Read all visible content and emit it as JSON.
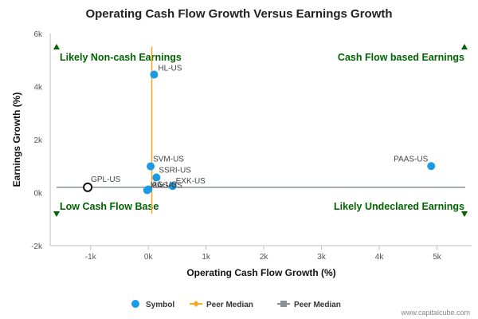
{
  "chart_data": {
    "type": "scatter",
    "title": "Operating Cash Flow Growth Versus Earnings Growth",
    "xlabel": "Operating Cash Flow Growth (%)",
    "ylabel": "Earnings Growth (%)",
    "xlim": [
      -1700,
      5600
    ],
    "ylim": [
      -2000,
      6000
    ],
    "x_ticks": [
      {
        "value": -1000,
        "label": "-1k"
      },
      {
        "value": 0,
        "label": "0k"
      },
      {
        "value": 1000,
        "label": "1k"
      },
      {
        "value": 2000,
        "label": "2k"
      },
      {
        "value": 3000,
        "label": "3k"
      },
      {
        "value": 4000,
        "label": "4k"
      },
      {
        "value": 5000,
        "label": "5k"
      }
    ],
    "y_ticks": [
      {
        "value": -2000,
        "label": "-2k"
      },
      {
        "value": 0,
        "label": "0k"
      },
      {
        "value": 2000,
        "label": "2k"
      },
      {
        "value": 4000,
        "label": "4k"
      },
      {
        "value": 6000,
        "label": "6k"
      }
    ],
    "grid": false,
    "series": [
      {
        "name": "Symbol",
        "color": "#1a9be8",
        "points": [
          {
            "label": "HL-US",
            "x": 100,
            "y": 4450
          },
          {
            "label": "PAAS-US",
            "x": 4900,
            "y": 1000
          },
          {
            "label": "SVM-US",
            "x": 40,
            "y": 990
          },
          {
            "label": "SSRI-US",
            "x": 140,
            "y": 570
          },
          {
            "label": "EXK-US",
            "x": 420,
            "y": 250
          },
          {
            "label": "AG-US",
            "x": 0,
            "y": 120
          },
          {
            "label": "MAG-US",
            "x": -20,
            "y": 90
          }
        ]
      }
    ],
    "highlight": {
      "label": "GPL-US",
      "x": -1050,
      "y": 200
    },
    "peer_median_x": {
      "name": "Peer Median",
      "value": 60,
      "y_range": [
        -800,
        5500
      ],
      "color": "#f5a623"
    },
    "peer_median_y": {
      "name": "Peer Median",
      "value": 200,
      "color": "#8a9099"
    },
    "quadrants": {
      "top_left": "Likely Non-cash Earnings",
      "top_right": "Cash Flow based Earnings",
      "bottom_left": "Low Cash Flow Base",
      "bottom_right": "Likely Undeclared Earnings"
    },
    "legend": {
      "placement": "bottom",
      "items": [
        {
          "label": "Symbol",
          "marker": "circle",
          "color": "#1a9be8"
        },
        {
          "label": "Peer Median",
          "marker": "diamond-line",
          "color": "#f5a623"
        },
        {
          "label": "Peer Median",
          "marker": "square-line",
          "color": "#8a9099"
        }
      ]
    },
    "credit": "www.capitalcube.com",
    "quadrant_color": "#006400"
  }
}
